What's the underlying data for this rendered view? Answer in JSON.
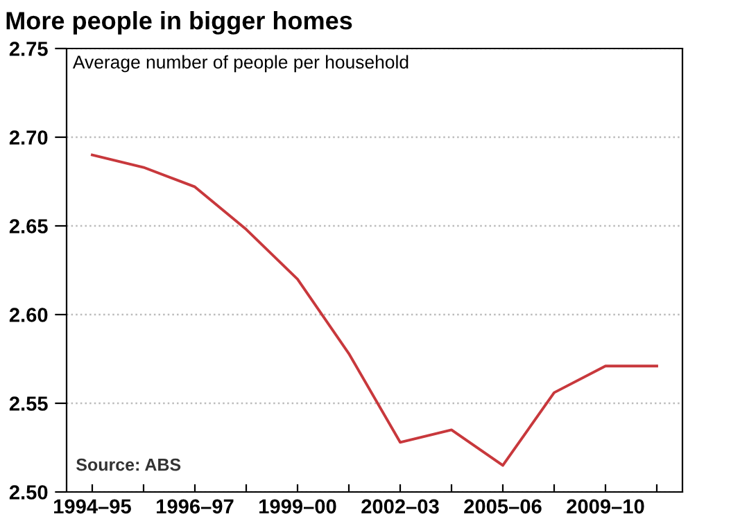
{
  "chart_data": {
    "type": "line",
    "title": "More people in bigger homes",
    "subtitle": "Average number of people per household",
    "categories": [
      "1994–95",
      null,
      "1996–97",
      null,
      "1999–00",
      null,
      "2002–03",
      null,
      "2005–06",
      null,
      "2009–10",
      null
    ],
    "series": [
      {
        "color": "#c8383c",
        "values": [
          2.69,
          2.683,
          2.672,
          2.648,
          2.62,
          2.578,
          2.528,
          2.535,
          2.515,
          2.556,
          2.571,
          2.571
        ]
      }
    ],
    "ylim": [
      2.5,
      2.75
    ],
    "yticks": [
      {
        "value": 2.5,
        "label": "2.50"
      },
      2.55,
      {
        "value": 2.6,
        "label": "2.60"
      },
      2.65,
      {
        "value": 2.7,
        "label": "2.70"
      },
      2.75
    ],
    "grid": "y",
    "marker": "none",
    "line_style": "solid",
    "annotations": [
      "Source: ABS"
    ]
  }
}
